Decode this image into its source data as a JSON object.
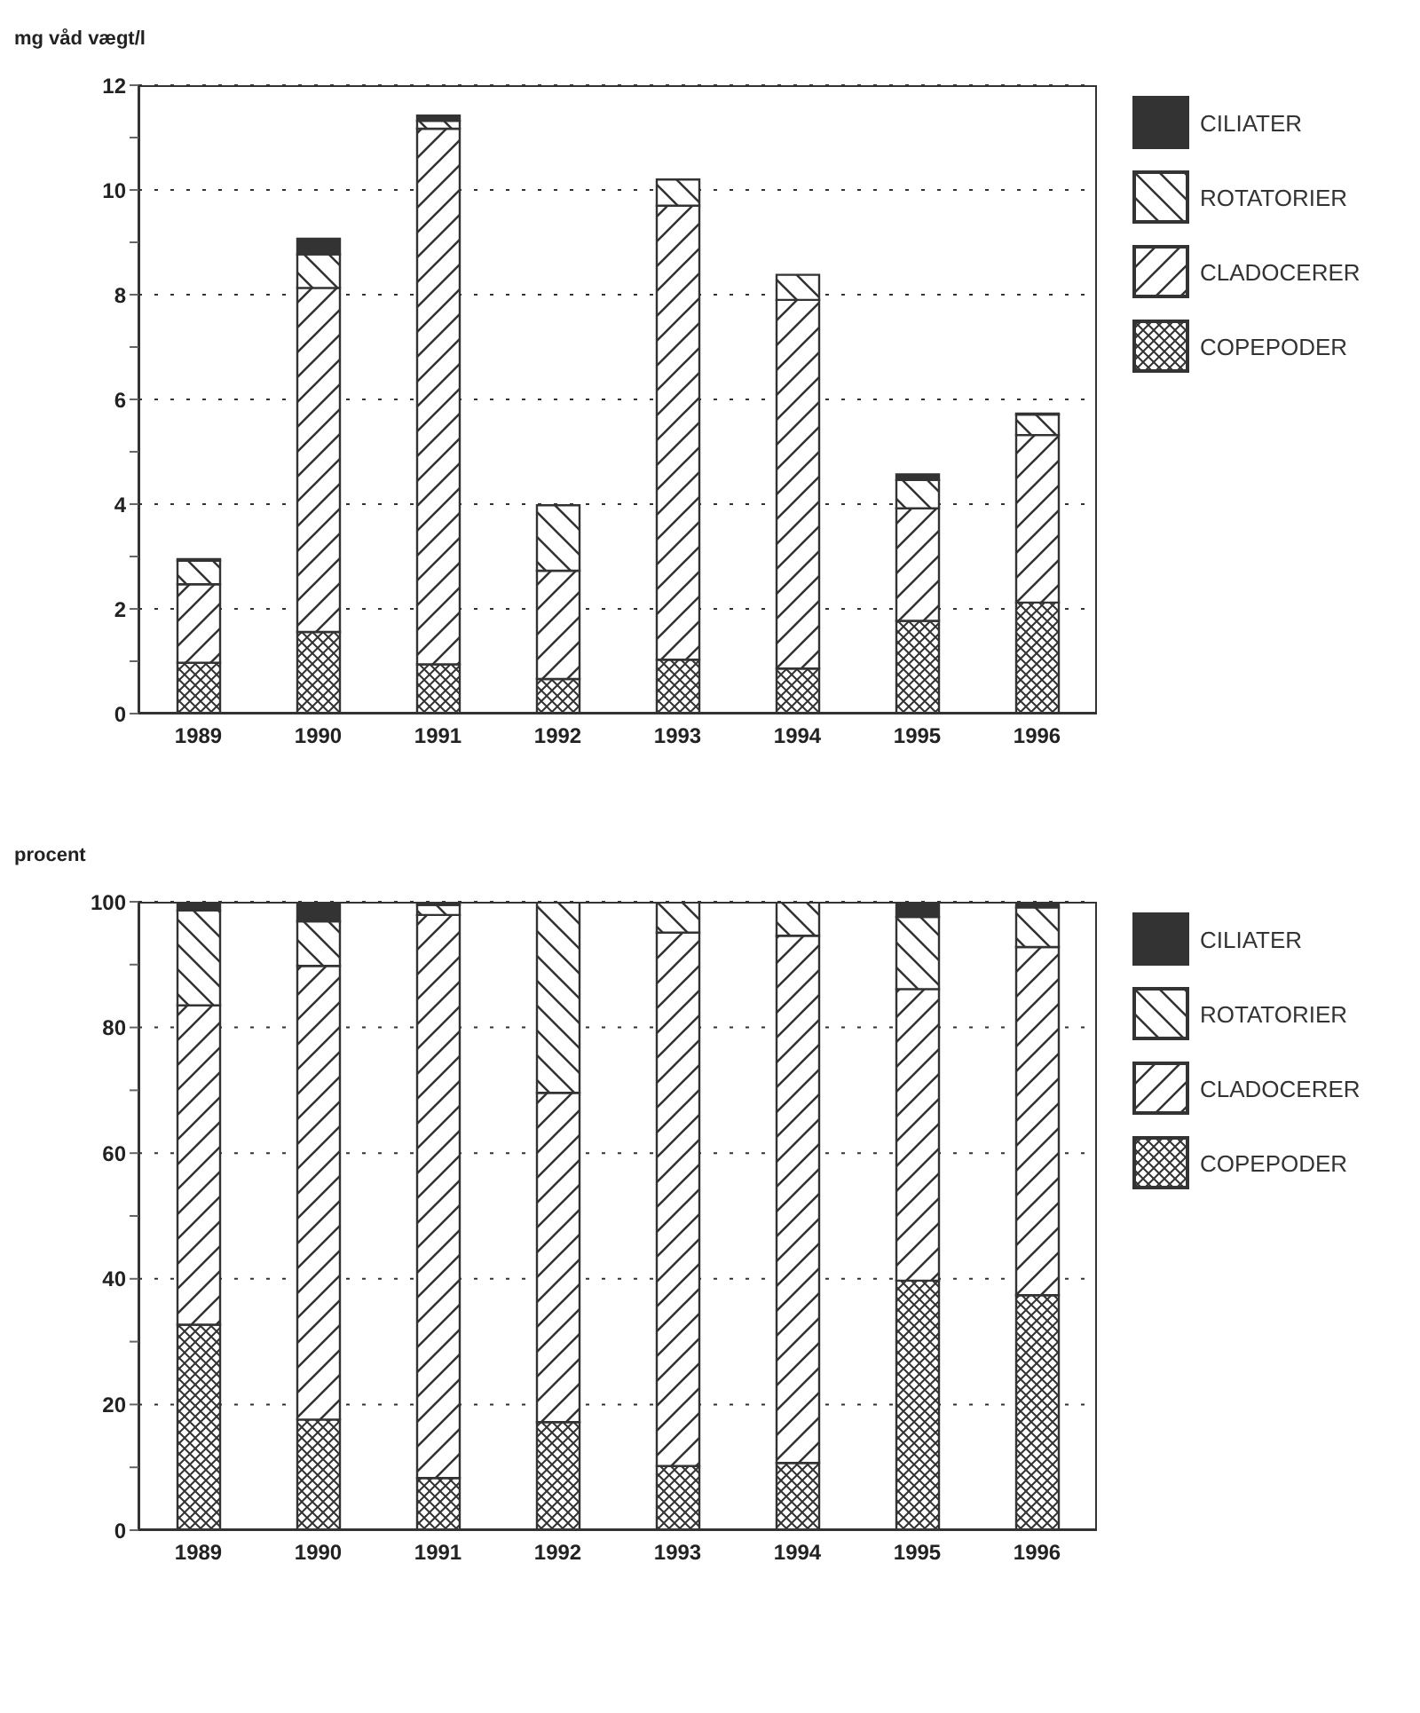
{
  "chart_data": [
    {
      "type": "bar",
      "stacked": true,
      "ylabel": "mg våd vægt/l",
      "categories": [
        "1989",
        "1990",
        "1991",
        "1992",
        "1993",
        "1994",
        "1995",
        "1996"
      ],
      "series": [
        {
          "name": "COPEPODER",
          "color": "#333333",
          "values": [
            0.97,
            1.56,
            0.94,
            0.66,
            1.03,
            0.86,
            1.77,
            2.12
          ]
        },
        {
          "name": "CLADOCERER",
          "color": "#333333",
          "values": [
            1.5,
            6.57,
            10.23,
            2.07,
            8.67,
            7.04,
            2.15,
            3.2
          ]
        },
        {
          "name": "ROTATORIER",
          "color": "#333333",
          "values": [
            0.45,
            0.64,
            0.15,
            1.25,
            0.5,
            0.48,
            0.54,
            0.39
          ]
        },
        {
          "name": "CILIATER",
          "color": "#333333",
          "values": [
            0.03,
            0.3,
            0.1,
            0,
            0,
            0,
            0.11,
            0.02
          ]
        }
      ],
      "ylim": [
        0,
        12
      ],
      "yticks": [
        0,
        {
          "value": 1,
          "label": null
        },
        2,
        {
          "value": 3,
          "label": null
        },
        4,
        {
          "value": 5,
          "label": null
        },
        6,
        {
          "value": 7,
          "label": null
        },
        8,
        {
          "value": 9,
          "label": null
        },
        10,
        {
          "value": 11,
          "label": null
        },
        12
      ],
      "grid": "y",
      "legend": "right"
    },
    {
      "type": "bar",
      "stacked": true,
      "ylabel": "procent",
      "categories": [
        "1989",
        "1990",
        "1991",
        "1992",
        "1993",
        "1994",
        "1995",
        "1996"
      ],
      "series": [
        {
          "name": "COPEPODER",
          "color": "#333333",
          "values": [
            32.7,
            17.6,
            8.3,
            17.2,
            10.2,
            10.7,
            39.7,
            37.4
          ]
        },
        {
          "name": "CLADOCERER",
          "color": "#333333",
          "values": [
            50.8,
            72.2,
            89.6,
            52.4,
            84.9,
            83.9,
            46.4,
            55.4
          ]
        },
        {
          "name": "ROTATORIER",
          "color": "#333333",
          "values": [
            15.1,
            7.1,
            1.6,
            30.4,
            4.9,
            5.4,
            11.5,
            6.3
          ]
        },
        {
          "name": "CILIATER",
          "color": "#333333",
          "values": [
            1.4,
            3.1,
            0.5,
            0,
            0,
            0,
            2.4,
            0.9
          ]
        }
      ],
      "ylim": [
        0,
        100
      ],
      "yticks": [
        0,
        {
          "value": 10,
          "label": null
        },
        20,
        {
          "value": 30,
          "label": null
        },
        40,
        {
          "value": 50,
          "label": null
        },
        60,
        {
          "value": 70,
          "label": null
        },
        80,
        {
          "value": 90,
          "label": null
        },
        100
      ],
      "grid": "y",
      "legend": "right"
    }
  ]
}
